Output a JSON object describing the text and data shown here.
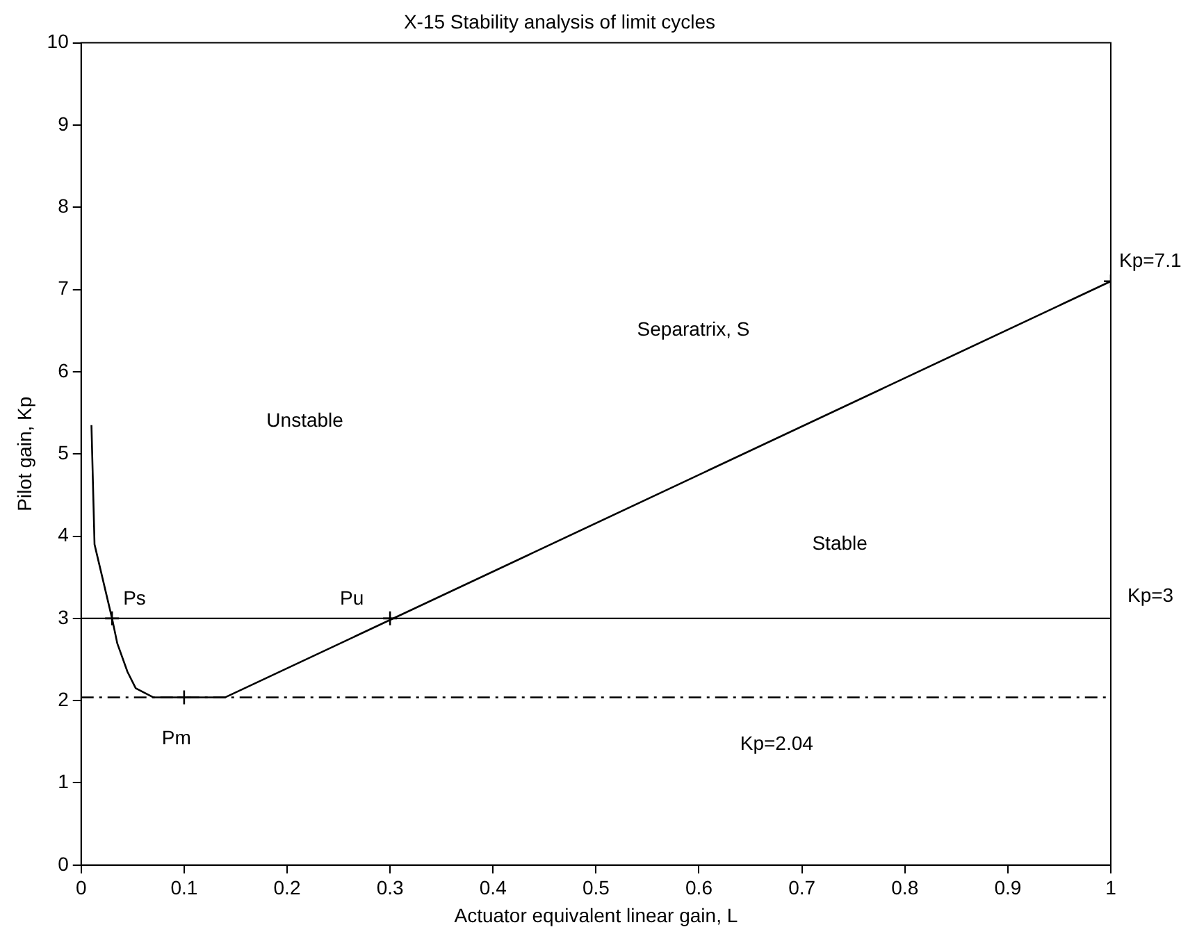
{
  "chart_data": {
    "type": "line",
    "title": "X-15 Stability analysis of limit cycles",
    "xlabel": "Actuator equivalent linear gain, L",
    "ylabel": "Pilot gain, Kp",
    "xlim": [
      0,
      1
    ],
    "xticks": [
      0,
      0.1,
      0.2,
      0.3,
      0.4,
      0.5,
      0.6,
      0.7,
      0.8,
      0.9,
      1
    ],
    "ylim": [
      0,
      10
    ],
    "yticks": [
      0,
      1,
      2,
      3,
      4,
      5,
      6,
      7,
      8,
      9,
      10
    ],
    "grid": false,
    "legend": false,
    "series": [
      {
        "type": "line",
        "color": "#000000",
        "marker": "none",
        "x": [
          0.01,
          0.013,
          0.03,
          0.035,
          0.045,
          0.053,
          0.07,
          0.14,
          1
        ],
        "values": [
          5.35,
          3.9,
          3,
          2.7,
          2.35,
          2.15,
          2.04,
          2.04,
          7.1
        ]
      },
      {
        "type": "scatter",
        "color": "#000000",
        "marker": "cross",
        "x": [
          0.03,
          0.1,
          0.3,
          1
        ],
        "values": [
          3,
          2.04,
          3,
          7.1
        ]
      }
    ],
    "ref_lines": [
      {
        "axis": "y",
        "value": 3,
        "label": "Kp=3",
        "line_style": "solid",
        "color": "#000000"
      },
      {
        "axis": "y",
        "value": 2.04,
        "label": "Kp=2.04",
        "line_style": "dashed",
        "color": "#000000"
      }
    ],
    "annotations": [
      {
        "text": "Ps",
        "x": 0.03,
        "y": 3
      },
      {
        "text": "Pu",
        "x": 0.3,
        "y": 3
      },
      {
        "text": "Pm",
        "x": 0.1,
        "y": 2.04
      },
      {
        "text": "Kp=7.1",
        "x": 1,
        "y": 7.1
      },
      "Unstable",
      "Separatrix, S",
      "Stable"
    ]
  }
}
